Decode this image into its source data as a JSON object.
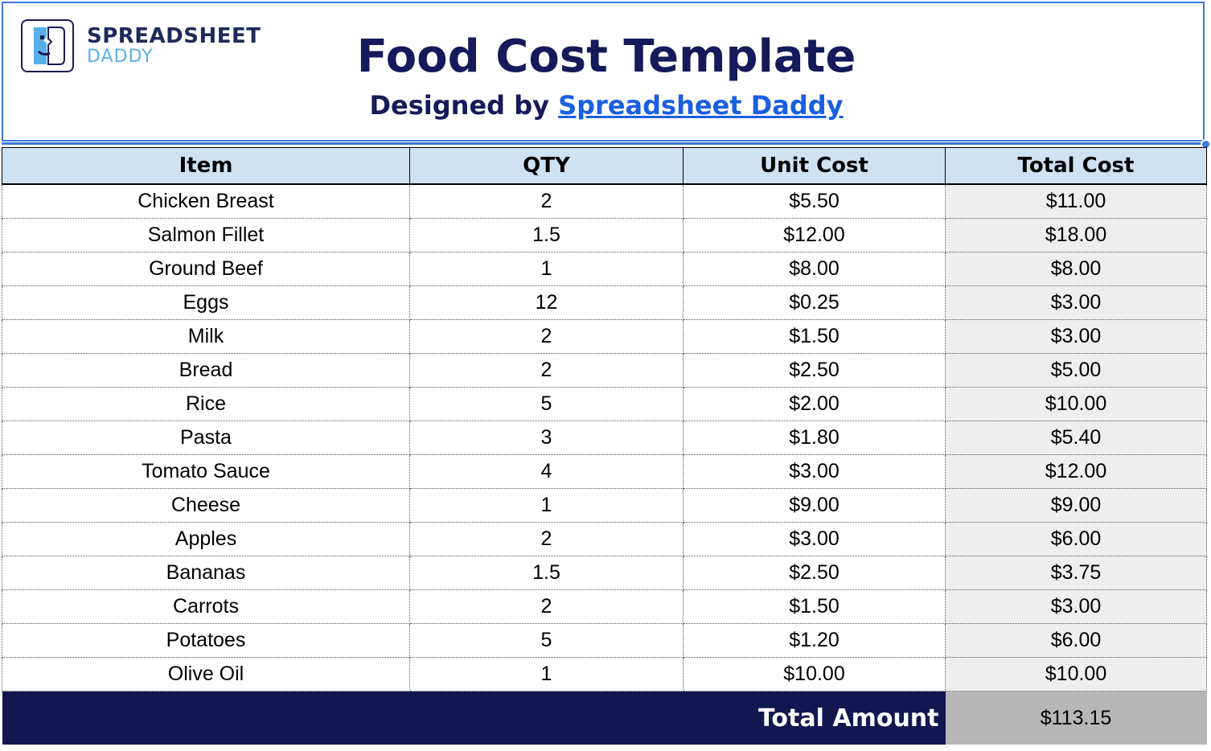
{
  "brand": {
    "name_line1": "SPREADSHEET",
    "name_line2": "DADDY",
    "colors": {
      "navy": "#141a5a",
      "light_blue": "#5aaeea",
      "accent": "#3b78d8"
    }
  },
  "header": {
    "title": "Food Cost Template",
    "subtitle_prefix": "Designed by ",
    "subtitle_link": "Spreadsheet Daddy"
  },
  "table": {
    "columns": [
      "Item",
      "QTY",
      "Unit Cost",
      "Total Cost"
    ],
    "rows": [
      {
        "item": "Chicken Breast",
        "qty": "2",
        "unit_cost": "$5.50",
        "total_cost": "$11.00"
      },
      {
        "item": "Salmon Fillet",
        "qty": "1.5",
        "unit_cost": "$12.00",
        "total_cost": "$18.00"
      },
      {
        "item": "Ground Beef",
        "qty": "1",
        "unit_cost": "$8.00",
        "total_cost": "$8.00"
      },
      {
        "item": "Eggs",
        "qty": "12",
        "unit_cost": "$0.25",
        "total_cost": "$3.00"
      },
      {
        "item": "Milk",
        "qty": "2",
        "unit_cost": "$1.50",
        "total_cost": "$3.00"
      },
      {
        "item": "Bread",
        "qty": "2",
        "unit_cost": "$2.50",
        "total_cost": "$5.00"
      },
      {
        "item": "Rice",
        "qty": "5",
        "unit_cost": "$2.00",
        "total_cost": "$10.00"
      },
      {
        "item": "Pasta",
        "qty": "3",
        "unit_cost": "$1.80",
        "total_cost": "$5.40"
      },
      {
        "item": "Tomato Sauce",
        "qty": "4",
        "unit_cost": "$3.00",
        "total_cost": "$12.00"
      },
      {
        "item": "Cheese",
        "qty": "1",
        "unit_cost": "$9.00",
        "total_cost": "$9.00"
      },
      {
        "item": "Apples",
        "qty": "2",
        "unit_cost": "$3.00",
        "total_cost": "$6.00"
      },
      {
        "item": "Bananas",
        "qty": "1.5",
        "unit_cost": "$2.50",
        "total_cost": "$3.75"
      },
      {
        "item": "Carrots",
        "qty": "2",
        "unit_cost": "$1.50",
        "total_cost": "$3.00"
      },
      {
        "item": "Potatoes",
        "qty": "5",
        "unit_cost": "$1.20",
        "total_cost": "$6.00"
      },
      {
        "item": "Olive Oil",
        "qty": "1",
        "unit_cost": "$10.00",
        "total_cost": "$10.00"
      }
    ],
    "footer": {
      "label": "Total Amount",
      "value": "$113.15"
    }
  }
}
